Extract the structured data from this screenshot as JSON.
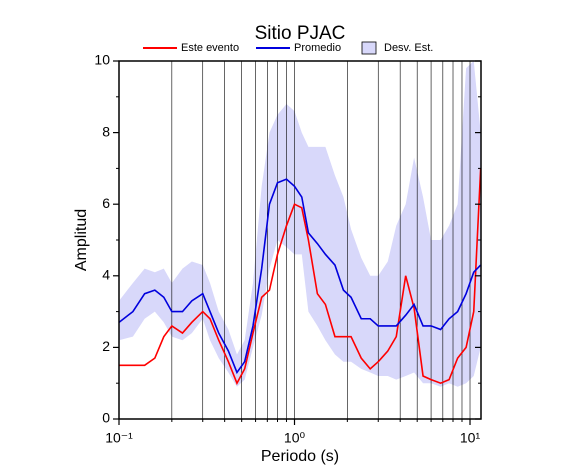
{
  "chart_data": {
    "type": "line",
    "title": "Sitio PJAC",
    "x_label": "Periodo (s)",
    "y_label": "Amplitud",
    "x_log": true,
    "x": [
      0.1,
      0.12,
      0.14,
      0.16,
      0.18,
      0.2,
      0.23,
      0.26,
      0.3,
      0.33,
      0.37,
      0.42,
      0.47,
      0.52,
      0.58,
      0.65,
      0.72,
      0.8,
      0.9,
      1.0,
      1.1,
      1.2,
      1.35,
      1.5,
      1.7,
      1.9,
      2.1,
      2.4,
      2.7,
      3.0,
      3.4,
      3.8,
      4.3,
      4.8,
      5.4,
      6.0,
      6.8,
      7.6,
      8.5,
      9.5,
      10.5,
      11.5
    ],
    "series": [
      {
        "name": "Este evento",
        "color": "#ff0000",
        "values": [
          1.5,
          1.5,
          1.5,
          1.7,
          2.3,
          2.6,
          2.4,
          2.7,
          3.0,
          2.8,
          2.2,
          1.6,
          1.0,
          1.4,
          2.4,
          3.4,
          3.6,
          4.6,
          5.4,
          6.0,
          5.9,
          5.0,
          3.5,
          3.2,
          2.3,
          2.3,
          2.3,
          1.7,
          1.4,
          1.6,
          1.9,
          2.3,
          4.0,
          3.1,
          1.2,
          1.1,
          1.0,
          1.1,
          1.7,
          2.0,
          3.0,
          7.0
        ]
      },
      {
        "name": "Promedio",
        "color": "#0000dd",
        "values": [
          2.7,
          3.0,
          3.5,
          3.6,
          3.4,
          3.0,
          3.0,
          3.3,
          3.5,
          3.0,
          2.4,
          1.9,
          1.3,
          1.6,
          2.6,
          4.2,
          6.0,
          6.6,
          6.7,
          6.5,
          6.2,
          5.2,
          4.9,
          4.6,
          4.3,
          3.6,
          3.4,
          2.8,
          2.8,
          2.6,
          2.6,
          2.6,
          2.9,
          3.2,
          2.6,
          2.6,
          2.5,
          2.8,
          3.0,
          3.5,
          4.1,
          4.3
        ]
      },
      {
        "name": "Desv. Est.",
        "color": "#d8d8fa",
        "band": true,
        "upper": [
          3.3,
          3.8,
          4.2,
          4.1,
          4.2,
          3.8,
          4.2,
          4.4,
          4.3,
          3.8,
          3.0,
          2.5,
          1.8,
          2.2,
          3.8,
          6.5,
          8.0,
          8.5,
          8.8,
          8.6,
          8.0,
          7.6,
          7.6,
          7.6,
          6.8,
          6.2,
          5.3,
          4.5,
          4.0,
          4.0,
          4.4,
          5.4,
          6.0,
          7.3,
          6.2,
          5.0,
          5.0,
          5.4,
          6.0,
          9.8,
          10,
          8.0
        ],
        "lower": [
          2.2,
          2.3,
          2.8,
          3.0,
          2.7,
          2.3,
          2.2,
          2.4,
          2.8,
          2.2,
          1.7,
          1.3,
          0.9,
          1.1,
          2.0,
          2.9,
          4.2,
          5.0,
          4.8,
          4.6,
          4.6,
          3.0,
          2.6,
          2.2,
          1.8,
          1.6,
          1.6,
          1.4,
          1.3,
          1.2,
          1.2,
          1.1,
          1.2,
          1.3,
          1.0,
          1.0,
          0.9,
          1.0,
          0.9,
          1.0,
          1.2,
          2.0
        ]
      }
    ],
    "xlim": [
      0.1,
      11.55
    ],
    "ylim": [
      0,
      10
    ],
    "xticks": [
      {
        "value": 0.1,
        "label": "10⁻¹"
      },
      {
        "value": 1,
        "label": "10⁰"
      },
      {
        "value": 10,
        "label": "10¹"
      }
    ],
    "x_minor_ticks": [
      0.2,
      0.3,
      0.4,
      0.5,
      0.6,
      0.7,
      0.8,
      0.9,
      2,
      3,
      4,
      5,
      6,
      7,
      8,
      9
    ],
    "yticks": [
      0,
      2,
      4,
      6,
      8,
      10
    ],
    "y_minor_ticks": [
      1,
      3,
      5,
      7,
      9
    ],
    "grid": true
  }
}
